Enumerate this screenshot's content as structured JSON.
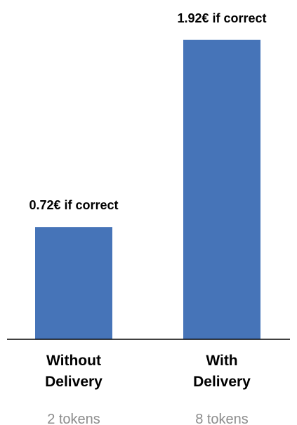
{
  "chart_data": {
    "type": "bar",
    "categories": [
      [
        "Without",
        "Delivery"
      ],
      [
        "With",
        "Delivery"
      ]
    ],
    "values": [
      0.72,
      1.92
    ],
    "value_labels": [
      "0.72€ if correct",
      "1.92€ if correct"
    ],
    "sublabels": [
      "2 tokens",
      "8 tokens"
    ],
    "ylim": [
      0,
      2.0
    ],
    "grid": false,
    "legend": "none",
    "bar_color": "#4674b8",
    "axis_color": "#000000",
    "sublabel_color": "#8c8c8c"
  }
}
